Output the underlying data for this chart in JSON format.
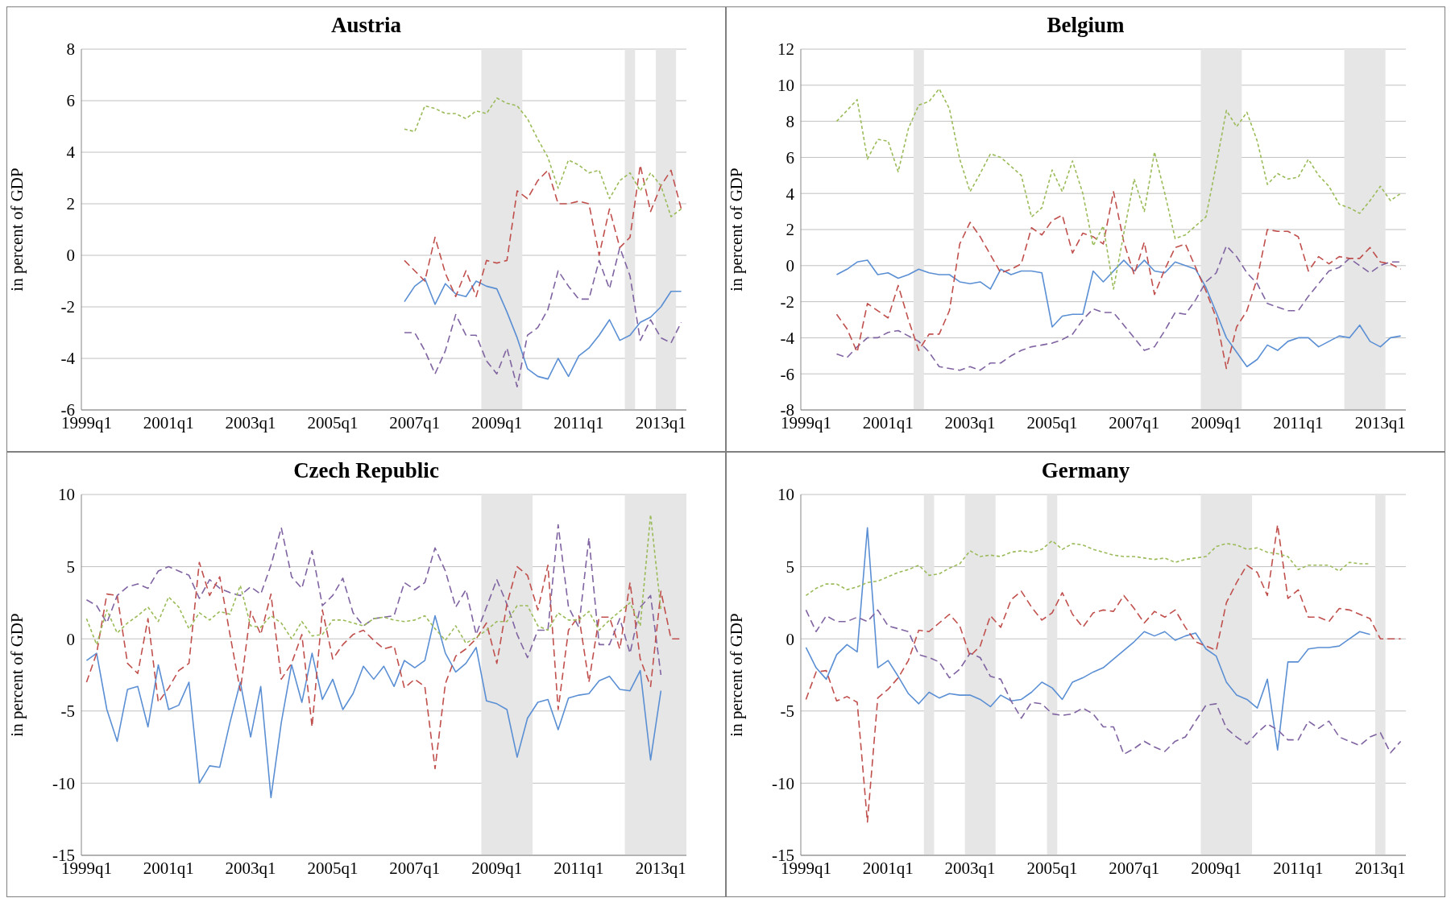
{
  "chart_data": [
    {
      "type": "line",
      "title": "Austria",
      "ylabel": "in percent of GDP",
      "grid": "y",
      "xlim": [
        "1998-11-16",
        "2013-08-16"
      ],
      "ylim": [
        -6,
        8
      ],
      "yticks": [
        -6,
        -4,
        -2,
        0,
        2,
        4,
        6,
        8
      ],
      "xticks": [
        {
          "value": "1999-01",
          "label": "1999q1"
        },
        {
          "value": "2001-01",
          "label": "2001q1"
        },
        {
          "value": "2003-01",
          "label": "2003q1"
        },
        {
          "value": "2005-01",
          "label": "2005q1"
        },
        {
          "value": "2007-01",
          "label": "2007q1"
        },
        {
          "value": "2009-01",
          "label": "2009q1"
        },
        {
          "value": "2011-01",
          "label": "2011q1"
        },
        {
          "value": "2013-01",
          "label": "2013q1"
        }
      ],
      "x": [
        "2006-10",
        "2007-01",
        "2007-04",
        "2007-07",
        "2007-10",
        "2008-01",
        "2008-04",
        "2008-07",
        "2008-10",
        "2009-01",
        "2009-04",
        "2009-07",
        "2009-10",
        "2010-01",
        "2010-04",
        "2010-07",
        "2010-10",
        "2011-01",
        "2011-04",
        "2011-07",
        "2011-10",
        "2012-01",
        "2012-04",
        "2012-07",
        "2012-10",
        "2013-01",
        "2013-04",
        "2013-07"
      ],
      "bands": [
        {
          "axis": "x",
          "from": "2008-08-16",
          "to": "2009-08-16",
          "color": "#e6e6e6"
        },
        {
          "axis": "x",
          "from": "2012-02-15",
          "to": "2012-05-16",
          "color": "#e6e6e6"
        },
        {
          "axis": "x",
          "from": "2012-11-16",
          "to": "2013-05-16",
          "color": "#e6e6e6"
        }
      ],
      "series": [
        {
          "color": "#5b8fd4",
          "line_style": "solid",
          "values": [
            -1.8,
            -1.2,
            -0.9,
            -1.9,
            -1.1,
            -1.5,
            -1.6,
            -1,
            -1.2,
            -1.3,
            -2.2,
            -3.2,
            -4.4,
            -4.7,
            -4.8,
            -4,
            -4.7,
            -3.9,
            -3.6,
            -3.1,
            -2.5,
            -3.3,
            -3.1,
            -2.6,
            -2.4,
            -2,
            -1.4,
            -1.4
          ]
        },
        {
          "color": "#8064a2",
          "line_style": "dashed",
          "values": [
            -3,
            -3,
            -3.7,
            -4.6,
            -3.7,
            -2.3,
            -3.1,
            -3.1,
            -4.1,
            -4.6,
            -3.6,
            -5.1,
            -3.1,
            -2.8,
            -2.1,
            -0.6,
            -1.2,
            -1.7,
            -1.7,
            -0.2,
            -1.3,
            0.3,
            -0.8,
            -3.3,
            -2.5,
            -3.2,
            -3.4,
            -2.6
          ]
        },
        {
          "color": "#c0504d",
          "line_style": "dashed",
          "values": [
            -0.2,
            -0.6,
            -1,
            0.7,
            -0.7,
            -1.6,
            -0.6,
            -1.6,
            -0.2,
            -0.3,
            -0.2,
            2.5,
            2.2,
            2.9,
            3.3,
            2,
            2,
            2.1,
            2,
            0,
            1.8,
            0.3,
            0.7,
            3.5,
            1.7,
            2.7,
            3.3,
            1.8
          ]
        },
        {
          "color": "#9bbb59",
          "line_style": "dotted",
          "values": [
            4.9,
            4.8,
            5.8,
            5.7,
            5.5,
            5.5,
            5.3,
            5.6,
            5.5,
            6.1,
            5.9,
            5.8,
            5.3,
            4.5,
            3.8,
            2.6,
            3.7,
            3.5,
            3.2,
            3.3,
            2.2,
            2.9,
            3.2,
            2.5,
            3.2,
            2.7,
            1.5,
            1.8
          ]
        }
      ]
    },
    {
      "type": "line",
      "title": "Belgium",
      "ylabel": "in percent of GDP",
      "grid": "y",
      "xlim": [
        "1998-11-16",
        "2013-08-16"
      ],
      "ylim": [
        -8,
        12
      ],
      "yticks": [
        -8,
        -6,
        -4,
        -2,
        0,
        2,
        4,
        6,
        8,
        10,
        12
      ],
      "xticks": [
        {
          "value": "1999-01",
          "label": "1999q1"
        },
        {
          "value": "2001-01",
          "label": "2001q1"
        },
        {
          "value": "2003-01",
          "label": "2003q1"
        },
        {
          "value": "2005-01",
          "label": "2005q1"
        },
        {
          "value": "2007-01",
          "label": "2007q1"
        },
        {
          "value": "2009-01",
          "label": "2009q1"
        },
        {
          "value": "2011-01",
          "label": "2011q1"
        },
        {
          "value": "2013-01",
          "label": "2013q1"
        }
      ],
      "x": [
        "1999-10",
        "2000-01",
        "2000-04",
        "2000-07",
        "2000-10",
        "2001-01",
        "2001-04",
        "2001-07",
        "2001-10",
        "2002-01",
        "2002-04",
        "2002-07",
        "2002-10",
        "2003-01",
        "2003-04",
        "2003-07",
        "2003-10",
        "2004-01",
        "2004-04",
        "2004-07",
        "2004-10",
        "2005-01",
        "2005-04",
        "2005-07",
        "2005-10",
        "2006-01",
        "2006-04",
        "2006-07",
        "2006-10",
        "2007-01",
        "2007-04",
        "2007-07",
        "2007-10",
        "2008-01",
        "2008-04",
        "2008-07",
        "2008-10",
        "2009-01",
        "2009-04",
        "2009-07",
        "2009-10",
        "2010-01",
        "2010-04",
        "2010-07",
        "2010-10",
        "2011-01",
        "2011-04",
        "2011-07",
        "2011-10",
        "2012-01",
        "2012-04",
        "2012-07",
        "2012-10",
        "2013-01",
        "2013-04",
        "2013-07"
      ],
      "bands": [
        {
          "axis": "x",
          "from": "2001-08-16",
          "to": "2001-11-16",
          "color": "#e6e6e6"
        },
        {
          "axis": "x",
          "from": "2008-08-16",
          "to": "2009-08-16",
          "color": "#e6e6e6"
        },
        {
          "axis": "x",
          "from": "2012-02-15",
          "to": "2013-02-15",
          "color": "#e6e6e6"
        }
      ],
      "series": [
        {
          "color": "#5b8fd4",
          "line_style": "solid",
          "values": [
            -0.5,
            -0.2,
            0.2,
            0.3,
            -0.5,
            -0.4,
            -0.7,
            -0.5,
            -0.2,
            -0.4,
            -0.5,
            -0.5,
            -0.9,
            -1,
            -0.9,
            -1.3,
            -0.2,
            -0.5,
            -0.3,
            -0.3,
            -0.4,
            -3.4,
            -2.8,
            -2.7,
            -2.7,
            -0.3,
            -0.9,
            -0.3,
            0.3,
            -0.3,
            0.3,
            -0.3,
            -0.4,
            0.2,
            0,
            -0.2,
            -1.2,
            -2.6,
            -4,
            -4.8,
            -5.6,
            -5.2,
            -4.4,
            -4.7,
            -4.2,
            -4,
            -4,
            -4.5,
            -4.2,
            -3.9,
            -4,
            -3.3,
            -4.2,
            -4.5,
            -4,
            -3.9
          ]
        },
        {
          "color": "#8064a2",
          "line_style": "dashed",
          "values": [
            -4.9,
            -5.1,
            -4.5,
            -4,
            -4,
            -3.7,
            -3.6,
            -3.9,
            -4.2,
            -4.8,
            -5.6,
            -5.7,
            -5.8,
            -5.6,
            -5.8,
            -5.4,
            -5.4,
            -5,
            -4.7,
            -4.5,
            -4.4,
            -4.3,
            -4.1,
            -3.8,
            -3,
            -2.4,
            -2.6,
            -2.6,
            -3.3,
            -4,
            -4.7,
            -4.5,
            -3.6,
            -2.6,
            -2.7,
            -1.9,
            -0.9,
            -0.4,
            1.1,
            0.5,
            -0.4,
            -1,
            -2.1,
            -2.3,
            -2.5,
            -2.5,
            -1.7,
            -1,
            -0.3,
            -0.1,
            0.4,
            0,
            -0.4,
            0,
            0.2,
            0.2
          ]
        },
        {
          "color": "#c0504d",
          "line_style": "dashed",
          "values": [
            -2.7,
            -3.5,
            -4.8,
            -2.1,
            -2.5,
            -2.9,
            -1.1,
            -3,
            -4.7,
            -3.8,
            -3.8,
            -2.5,
            1.2,
            2.4,
            1.6,
            0.6,
            -0.4,
            -0.2,
            0.1,
            2.1,
            1.7,
            2.5,
            2.8,
            0.7,
            1.8,
            1.6,
            1.2,
            4.1,
            1.3,
            -0.5,
            1.3,
            -1.6,
            -0.2,
            1,
            1.2,
            -0.1,
            -1.4,
            -2.9,
            -5.7,
            -3.4,
            -2.5,
            -0.7,
            2,
            1.9,
            1.9,
            1.6,
            -0.3,
            0.5,
            0.1,
            0.5,
            0.4,
            0.4,
            1,
            0.2,
            0.1,
            -0.2
          ]
        },
        {
          "color": "#9bbb59",
          "line_style": "dotted",
          "values": [
            8,
            8.6,
            9.2,
            5.9,
            7,
            6.9,
            5.2,
            7.6,
            8.9,
            9.1,
            9.8,
            8.7,
            5.9,
            4.1,
            5.1,
            6.2,
            6,
            5.5,
            5,
            2.7,
            3.2,
            5.3,
            4.1,
            5.8,
            4,
            1.1,
            2.2,
            -1.3,
            1.8,
            4.8,
            3,
            6.3,
            4,
            1.5,
            1.7,
            2.2,
            2.7,
            5.6,
            8.6,
            7.7,
            8.5,
            6.9,
            4.5,
            5.1,
            4.8,
            4.9,
            5.9,
            5,
            4.4,
            3.4,
            3.2,
            2.9,
            3.6,
            4.4,
            3.6,
            4
          ]
        }
      ]
    },
    {
      "type": "line",
      "title": "Czech Republic",
      "ylabel": "in percent of GDP",
      "grid": "y",
      "xlim": [
        "1998-11-16",
        "2013-08-16"
      ],
      "ylim": [
        -15,
        10
      ],
      "yticks": [
        -15,
        -10,
        -5,
        0,
        5,
        10
      ],
      "xticks": [
        {
          "value": "1999-01",
          "label": "1999q1"
        },
        {
          "value": "2001-01",
          "label": "2001q1"
        },
        {
          "value": "2003-01",
          "label": "2003q1"
        },
        {
          "value": "2005-01",
          "label": "2005q1"
        },
        {
          "value": "2007-01",
          "label": "2007q1"
        },
        {
          "value": "2009-01",
          "label": "2009q1"
        },
        {
          "value": "2011-01",
          "label": "2011q1"
        },
        {
          "value": "2013-01",
          "label": "2013q1"
        }
      ],
      "x": [
        "1999-01",
        "1999-04",
        "1999-07",
        "1999-10",
        "2000-01",
        "2000-04",
        "2000-07",
        "2000-10",
        "2001-01",
        "2001-04",
        "2001-07",
        "2001-10",
        "2002-01",
        "2002-04",
        "2002-07",
        "2002-10",
        "2003-01",
        "2003-04",
        "2003-07",
        "2003-10",
        "2004-01",
        "2004-04",
        "2004-07",
        "2004-10",
        "2005-01",
        "2005-04",
        "2005-07",
        "2005-10",
        "2006-01",
        "2006-04",
        "2006-07",
        "2006-10",
        "2007-01",
        "2007-04",
        "2007-07",
        "2007-10",
        "2008-01",
        "2008-04",
        "2008-07",
        "2008-10",
        "2009-01",
        "2009-04",
        "2009-07",
        "2009-10",
        "2010-01",
        "2010-04",
        "2010-07",
        "2010-10",
        "2011-01",
        "2011-04",
        "2011-07",
        "2011-10",
        "2012-01",
        "2012-04",
        "2012-07",
        "2012-10",
        "2013-01",
        "2013-04",
        "2013-07"
      ],
      "bands": [
        {
          "axis": "x",
          "from": "2008-08-16",
          "to": "2009-11-16",
          "color": "#e6e6e6"
        },
        {
          "axis": "x",
          "from": "2012-02-15",
          "to": "2013-08-16",
          "color": "#e6e6e6"
        }
      ],
      "series": [
        {
          "color": "#5b8fd4",
          "line_style": "solid",
          "values": [
            -1.5,
            -1,
            -4.9,
            -7.1,
            -3.5,
            -3.3,
            -6.1,
            -1.8,
            -4.9,
            -4.6,
            -3,
            -10,
            -8.8,
            -8.9,
            -5.8,
            -3,
            -6.8,
            -3.3,
            -11,
            -5.8,
            -1.8,
            -4.4,
            -1,
            -4.2,
            -2.8,
            -4.9,
            -3.8,
            -1.9,
            -2.8,
            -1.9,
            -3.3,
            -1.5,
            -2,
            -1.5,
            1.6,
            -1,
            -2.3,
            -1.7,
            -0.6,
            -4.3,
            -4.5,
            -4.9,
            -8.2,
            -5.5,
            -4.4,
            -4.2,
            -6.3,
            -4.1,
            -3.9,
            -3.8,
            -2.9,
            -2.6,
            -3.5,
            -3.6,
            -2.2,
            -8.4,
            -3.6,
            null,
            null
          ]
        },
        {
          "color": "#8064a2",
          "line_style": "dashed",
          "values": [
            2.7,
            2.3,
            1.1,
            3,
            3.6,
            3.8,
            3.5,
            4.7,
            5,
            4.7,
            4.4,
            2.8,
            4.1,
            3.5,
            3.2,
            3,
            3.6,
            3.1,
            5.1,
            7.7,
            4.3,
            3.5,
            6.1,
            2.3,
            3,
            4.2,
            1.8,
            0.9,
            1.4,
            1.5,
            1.6,
            3.9,
            3.4,
            3.9,
            6.3,
            4.7,
            2.2,
            3.4,
            0.3,
            2.2,
            4.1,
            2.4,
            0.3,
            -1.3,
            0.6,
            0.6,
            7.9,
            2.2,
            0.8,
            7,
            -0.4,
            -0.4,
            1.4,
            -1,
            2.2,
            3,
            -2.5,
            null,
            null
          ]
        },
        {
          "color": "#c0504d",
          "line_style": "dashed",
          "values": [
            -3,
            -1,
            3.1,
            3,
            -1.7,
            -2.4,
            1.4,
            -4.4,
            -3.4,
            -2.2,
            -1.7,
            5.3,
            3,
            4.3,
            0.3,
            -3.6,
            1.9,
            0.3,
            3.1,
            -2.8,
            -1.7,
            0.3,
            -6.1,
            2,
            -1.4,
            -0.4,
            0.3,
            0.6,
            -0.1,
            -0.7,
            -0.5,
            -3.4,
            -2.8,
            -3.3,
            -9,
            -3.1,
            -1.2,
            -0.7,
            0,
            1.1,
            -1.7,
            2.4,
            5,
            4.4,
            2,
            5.1,
            -4.9,
            0.6,
            1.6,
            -3,
            1.5,
            1.5,
            -0.7,
            3.9,
            -1.4,
            -3.3,
            3.3,
            0,
            0
          ]
        },
        {
          "color": "#9bbb59",
          "line_style": "dotted",
          "values": [
            1.4,
            -0.4,
            2,
            0.4,
            1.1,
            1.6,
            2.2,
            1.2,
            2.9,
            2.2,
            0.7,
            1.8,
            1.3,
            1.9,
            1.7,
            3.7,
            0.9,
            0.8,
            1.6,
            1.1,
            0,
            1.2,
            0.2,
            0.3,
            1.3,
            1.3,
            1.1,
            0.9,
            1.4,
            1.5,
            1.3,
            1.2,
            1.3,
            1.6,
            0.7,
            -0.1,
            0.9,
            -0.3,
            0.1,
            0.6,
            1.2,
            1.2,
            2.3,
            2.3,
            0.9,
            0.6,
            1.8,
            1.3,
            1.3,
            1.9,
            0.6,
            1.3,
            1.9,
            2.5,
            0.9,
            8.6,
            2,
            null,
            null
          ]
        }
      ]
    },
    {
      "type": "line",
      "title": "Germany",
      "ylabel": "in percent of GDP",
      "grid": "y",
      "xlim": [
        "1998-11-16",
        "2013-08-16"
      ],
      "ylim": [
        -15,
        10
      ],
      "yticks": [
        -15,
        -10,
        -5,
        0,
        5,
        10
      ],
      "xticks": [
        {
          "value": "1999-01",
          "label": "1999q1"
        },
        {
          "value": "2001-01",
          "label": "2001q1"
        },
        {
          "value": "2003-01",
          "label": "2003q1"
        },
        {
          "value": "2005-01",
          "label": "2005q1"
        },
        {
          "value": "2007-01",
          "label": "2007q1"
        },
        {
          "value": "2009-01",
          "label": "2009q1"
        },
        {
          "value": "2011-01",
          "label": "2011q1"
        },
        {
          "value": "2013-01",
          "label": "2013q1"
        }
      ],
      "x": [
        "1999-01",
        "1999-04",
        "1999-07",
        "1999-10",
        "2000-01",
        "2000-04",
        "2000-07",
        "2000-10",
        "2001-01",
        "2001-04",
        "2001-07",
        "2001-10",
        "2002-01",
        "2002-04",
        "2002-07",
        "2002-10",
        "2003-01",
        "2003-04",
        "2003-07",
        "2003-10",
        "2004-01",
        "2004-04",
        "2004-07",
        "2004-10",
        "2005-01",
        "2005-04",
        "2005-07",
        "2005-10",
        "2006-01",
        "2006-04",
        "2006-07",
        "2006-10",
        "2007-01",
        "2007-04",
        "2007-07",
        "2007-10",
        "2008-01",
        "2008-04",
        "2008-07",
        "2008-10",
        "2009-01",
        "2009-04",
        "2009-07",
        "2009-10",
        "2010-01",
        "2010-04",
        "2010-07",
        "2010-10",
        "2011-01",
        "2011-04",
        "2011-07",
        "2011-10",
        "2012-01",
        "2012-04",
        "2012-07",
        "2012-10",
        "2013-01",
        "2013-04",
        "2013-07"
      ],
      "bands": [
        {
          "axis": "x",
          "from": "2001-11-16",
          "to": "2002-02-15",
          "color": "#e6e6e6"
        },
        {
          "axis": "x",
          "from": "2002-11-16",
          "to": "2003-08-16",
          "color": "#e6e6e6"
        },
        {
          "axis": "x",
          "from": "2004-11-16",
          "to": "2005-02-15",
          "color": "#e6e6e6"
        },
        {
          "axis": "x",
          "from": "2008-08-16",
          "to": "2009-11-16",
          "color": "#e6e6e6"
        },
        {
          "axis": "x",
          "from": "2012-11-16",
          "to": "2013-02-15",
          "color": "#e6e6e6"
        }
      ],
      "series": [
        {
          "color": "#5b8fd4",
          "line_style": "solid",
          "values": [
            -0.6,
            -2,
            -2.8,
            -1.1,
            -0.4,
            -0.9,
            7.7,
            -2,
            -1.5,
            -2.6,
            -3.8,
            -4.5,
            -3.7,
            -4.1,
            -3.8,
            -3.9,
            -3.9,
            -4.2,
            -4.7,
            -3.9,
            -4.3,
            -4.2,
            -3.7,
            -3,
            -3.4,
            -4.2,
            -3,
            -2.7,
            -2.3,
            -2,
            -1.4,
            -0.8,
            -0.2,
            0.5,
            0.2,
            0.5,
            -0.1,
            0.2,
            0.4,
            -0.7,
            -1.2,
            -3,
            -3.9,
            -4.2,
            -4.8,
            -2.8,
            -7.7,
            -1.6,
            -1.6,
            -0.7,
            -0.6,
            -0.6,
            -0.5,
            0,
            0.5,
            0.3,
            null,
            null,
            null
          ]
        },
        {
          "color": "#8064a2",
          "line_style": "dashed",
          "values": [
            2,
            0.5,
            1.6,
            1.2,
            1.2,
            1.5,
            1.2,
            2,
            0.9,
            0.7,
            0.5,
            -1.1,
            -1.3,
            -1.6,
            -2.7,
            -2.1,
            -1,
            -1.3,
            -2.6,
            -2.8,
            -4.3,
            -5.5,
            -4.4,
            -4.5,
            -5.2,
            -5.3,
            -5.2,
            -4.8,
            -5.2,
            -6.1,
            -6.1,
            -8,
            -7.6,
            -7.1,
            -7.5,
            -7.8,
            -7.1,
            -6.8,
            -5.7,
            -4.6,
            -4.5,
            -6.2,
            -6.8,
            -7.3,
            -6.5,
            -5.9,
            -6.3,
            -7,
            -7,
            -5.7,
            -6.2,
            -5.7,
            -6.8,
            -7.1,
            -7.4,
            -6.8,
            -6.5,
            -7.9,
            -7.1
          ]
        },
        {
          "color": "#c0504d",
          "line_style": "dashed",
          "values": [
            -4.2,
            -2.3,
            -2.2,
            -4.3,
            -4,
            -4.4,
            -12.7,
            -4.1,
            -3.5,
            -2.7,
            -1.5,
            0.6,
            0.5,
            1.1,
            1.7,
            0.9,
            -1.2,
            -0.5,
            1.6,
            0.8,
            2.7,
            3.3,
            2.2,
            1.3,
            1.8,
            3.2,
            1.7,
            0.8,
            1.8,
            2,
            1.9,
            3,
            2.1,
            1.1,
            1.9,
            1.5,
            2,
            0.8,
            -0.2,
            -0.5,
            -0.8,
            2.5,
            3.9,
            5.1,
            4.6,
            3,
            7.9,
            2.8,
            3.4,
            1.5,
            1.5,
            1.2,
            2.1,
            2,
            1.7,
            1.4,
            0,
            0,
            0
          ]
        },
        {
          "color": "#9bbb59",
          "line_style": "dotted",
          "values": [
            3,
            3.5,
            3.8,
            3.8,
            3.4,
            3.6,
            3.9,
            4,
            4.3,
            4.6,
            4.8,
            5.1,
            4.4,
            4.5,
            4.9,
            5.2,
            6.1,
            5.7,
            5.8,
            5.7,
            6,
            6.1,
            6,
            6.2,
            6.8,
            6.2,
            6.6,
            6.5,
            6.2,
            6,
            5.8,
            5.7,
            5.7,
            5.6,
            5.5,
            5.6,
            5.3,
            5.5,
            5.6,
            5.7,
            6.4,
            6.6,
            6.5,
            6.2,
            6.3,
            6,
            5.9,
            5.7,
            4.8,
            5.1,
            5.1,
            5.1,
            4.7,
            5.3,
            5.2,
            5.2,
            null,
            null,
            null
          ]
        }
      ]
    }
  ]
}
